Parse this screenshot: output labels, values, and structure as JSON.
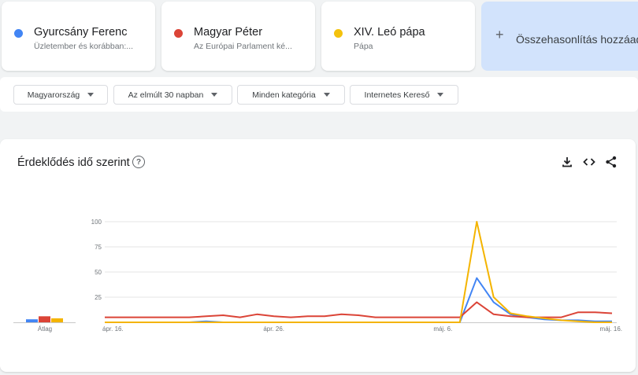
{
  "compare": {
    "terms": [
      {
        "name": "Gyurcsány Ferenc",
        "sub": "Üzletember és korábban:...",
        "color": "#4285f4"
      },
      {
        "name": "Magyar Péter",
        "sub": "Az Európai Parlament ké...",
        "color": "#db4437"
      },
      {
        "name": "XIV. Leó pápa",
        "sub": "Pápa",
        "color": "#f4b400"
      }
    ],
    "add_label": "Összehasonlítás hozzáadása"
  },
  "filters": {
    "region": "Magyarország",
    "time": "Az elmúlt 30 napban",
    "category": "Minden kategória",
    "property": "Internetes Kereső"
  },
  "panel": {
    "title": "Érdeklődés idő szerint",
    "help": "?",
    "icons": [
      "download-icon",
      "embed-code-icon",
      "share-icon"
    ]
  },
  "chart_data": {
    "type": "line",
    "ylim": [
      0,
      100
    ],
    "y_ticks": [
      "100",
      "75",
      "50",
      "25"
    ],
    "x_tick_labels": [
      "ápr. 16.",
      "ápr. 26.",
      "máj. 6.",
      "máj. 16."
    ],
    "average_label": "Átlag",
    "averages": [
      {
        "name": "Gyurcsány Ferenc",
        "value": 3,
        "color": "#4285f4"
      },
      {
        "name": "Magyar Péter",
        "value": 6,
        "color": "#db4437"
      },
      {
        "name": "XIV. Leó pápa",
        "value": 4,
        "color": "#f4b400"
      }
    ],
    "series": [
      {
        "name": "Gyurcsány Ferenc",
        "color": "#4285f4",
        "values": [
          0,
          0,
          0,
          0,
          0,
          0,
          1,
          0,
          0,
          0,
          0,
          0,
          0,
          0,
          0,
          0,
          0,
          0,
          0,
          0,
          0,
          0,
          44,
          20,
          8,
          5,
          3,
          2,
          2,
          1,
          1
        ]
      },
      {
        "name": "Magyar Péter",
        "color": "#db4437",
        "values": [
          5,
          5,
          5,
          5,
          5,
          5,
          6,
          7,
          5,
          8,
          6,
          5,
          6,
          6,
          8,
          7,
          5,
          5,
          5,
          5,
          5,
          5,
          20,
          8,
          6,
          5,
          5,
          5,
          10,
          10,
          9
        ]
      },
      {
        "name": "XIV. Leó pápa",
        "color": "#f4b400",
        "values": [
          0,
          0,
          0,
          0,
          0,
          0,
          0,
          0,
          0,
          0,
          0,
          0,
          0,
          0,
          0,
          0,
          0,
          0,
          0,
          0,
          0,
          0,
          100,
          25,
          9,
          6,
          4,
          2,
          1,
          0,
          0
        ]
      }
    ]
  }
}
